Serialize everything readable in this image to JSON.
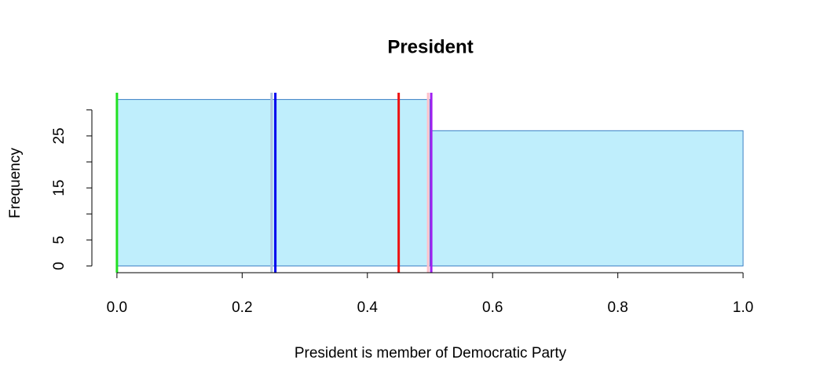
{
  "chart_data": {
    "type": "histogram",
    "title": "President",
    "x_label": "President is member of Democratic Party",
    "y_label": "Frequency",
    "bins": [
      0,
      0.5,
      1.0
    ],
    "values": [
      32,
      26
    ],
    "color": "#bfeefc",
    "edge_color": "#3a7fc4",
    "xlim": [
      -0.04,
      1.04
    ],
    "ylim": [
      -1.3,
      33.3
    ],
    "xticks": [
      {
        "value": 0,
        "label": "0.0"
      },
      0.2,
      0.4,
      0.6,
      0.8,
      {
        "value": 1,
        "label": "1.0"
      }
    ],
    "yticks": [
      0,
      5,
      {
        "value": 10,
        "label": null
      },
      15,
      {
        "value": 20,
        "label": null
      },
      25,
      {
        "value": 30,
        "label": null
      }
    ],
    "vlines": [
      {
        "x": 0.0,
        "color": "#22e022"
      },
      {
        "x": 0.247,
        "color": "#b0c4de"
      },
      {
        "x": 0.253,
        "color": "#0000ee"
      },
      {
        "x": 0.45,
        "color": "#ee1111"
      },
      {
        "x": 0.497,
        "color": "#ffc0cb"
      },
      {
        "x": 0.502,
        "color": "#a020f0"
      }
    ]
  }
}
